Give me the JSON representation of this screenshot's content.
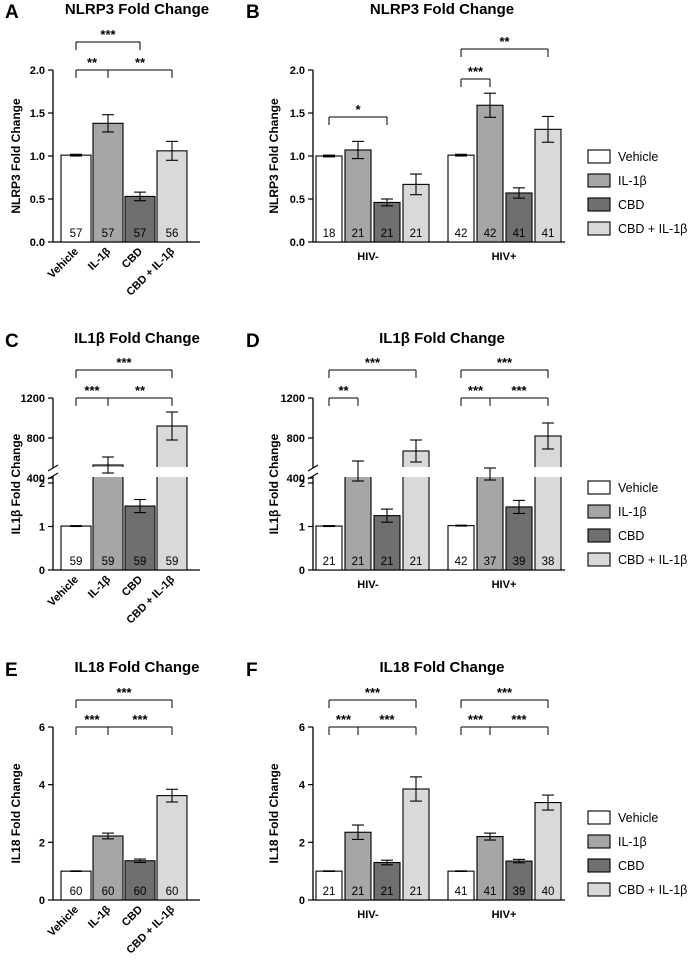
{
  "colors": {
    "vehicle": "#ffffff",
    "il1b": "#a6a6a6",
    "cbd": "#6f6f6f",
    "cbd_il1b": "#d9d9d9",
    "stroke": "#000000"
  },
  "legend": {
    "position": "right",
    "items": [
      "Vehicle",
      "IL-1β",
      "CBD",
      "CBD + IL-1β"
    ]
  },
  "chart_data": [
    {
      "panel": "A",
      "type": "bar",
      "title": "NLRP3 Fold Change",
      "ylabel": "NLRP3 Fold Change",
      "categories": [
        "Vehicle",
        "IL-1β",
        "CBD",
        "CBD + IL-1β"
      ],
      "values": [
        1.01,
        1.38,
        0.53,
        1.06
      ],
      "errors": [
        0.01,
        0.1,
        0.05,
        0.11
      ],
      "n": [
        "57",
        "57",
        "57",
        "56"
      ],
      "ylim": [
        0,
        2.0
      ],
      "yticks": [
        "0.0",
        "0.5",
        "1.0",
        "1.5",
        "2.0"
      ],
      "significance": [
        {
          "from": 0,
          "to": 1,
          "label": "**"
        },
        {
          "from": 1,
          "to": 3,
          "label": "**"
        },
        {
          "from": 0,
          "to": 2,
          "label": "***"
        }
      ]
    },
    {
      "panel": "B",
      "type": "bar",
      "title": "NLRP3 Fold Change",
      "ylabel": "NLRP3 Fold Change",
      "groups": [
        "HIV-",
        "HIV+"
      ],
      "series": [
        {
          "name": "Vehicle",
          "values": [
            1.0,
            1.01
          ],
          "errors": [
            0.01,
            0.01
          ],
          "n": [
            "18",
            "42"
          ]
        },
        {
          "name": "IL-1β",
          "values": [
            1.07,
            1.59
          ],
          "errors": [
            0.1,
            0.14
          ],
          "n": [
            "21",
            "42"
          ]
        },
        {
          "name": "CBD",
          "values": [
            0.46,
            0.57
          ],
          "errors": [
            0.04,
            0.06
          ],
          "n": [
            "21",
            "41"
          ]
        },
        {
          "name": "CBD + IL-1β",
          "values": [
            0.67,
            1.31
          ],
          "errors": [
            0.12,
            0.15
          ],
          "n": [
            "21",
            "41"
          ]
        }
      ],
      "ylim": [
        0,
        2.0
      ],
      "yticks": [
        "0.0",
        "0.5",
        "1.0",
        "1.5",
        "2.0"
      ],
      "significance": [
        {
          "group": 0,
          "from": 0,
          "to": 2,
          "label": "*"
        },
        {
          "group": 1,
          "from": 0,
          "to": 1,
          "label": "***"
        },
        {
          "group": 1,
          "from": 0,
          "to": 3,
          "label": "**"
        }
      ]
    },
    {
      "panel": "C",
      "type": "bar",
      "title": "IL1β Fold Change",
      "ylabel": "IL1β Fold Change",
      "categories": [
        "Vehicle",
        "IL-1β",
        "CBD",
        "CBD + IL-1β"
      ],
      "values": [
        1.01,
        530,
        1.47,
        920
      ],
      "errors": [
        0.01,
        80,
        0.15,
        140
      ],
      "n": [
        "59",
        "59",
        "59",
        "59"
      ],
      "axis_break": true,
      "ylim_lower": [
        0,
        2
      ],
      "ylim_upper": [
        0,
        1200
      ],
      "yticks_lower": [
        "0",
        "1",
        "2"
      ],
      "yticks_upper": [
        "400",
        "800",
        "1200"
      ],
      "significance": [
        {
          "from": 0,
          "to": 1,
          "label": "***"
        },
        {
          "from": 1,
          "to": 3,
          "label": "**"
        },
        {
          "from": 0,
          "to": 3,
          "label": "***"
        }
      ]
    },
    {
      "panel": "D",
      "type": "bar",
      "title": "IL1β Fold Change",
      "ylabel": "IL1β Fold Change",
      "groups": [
        "HIV-",
        "HIV+"
      ],
      "series": [
        {
          "name": "Vehicle",
          "values": [
            1.01,
            1.02
          ],
          "errors": [
            0.01,
            0.01
          ],
          "n": [
            "21",
            "42"
          ]
        },
        {
          "name": "IL-1β",
          "values": [
            470,
            440
          ],
          "errors": [
            100,
            60
          ],
          "n": [
            "21",
            "37"
          ]
        },
        {
          "name": "CBD",
          "values": [
            1.25,
            1.45
          ],
          "errors": [
            0.15,
            0.15
          ],
          "n": [
            "21",
            "39"
          ]
        },
        {
          "name": "CBD + IL-1β",
          "values": [
            670,
            820
          ],
          "errors": [
            110,
            130
          ],
          "n": [
            "21",
            "38"
          ]
        }
      ],
      "axis_break": true,
      "ylim_lower": [
        0,
        2
      ],
      "ylim_upper": [
        0,
        1200
      ],
      "yticks_lower": [
        "0",
        "1",
        "2"
      ],
      "yticks_upper": [
        "400",
        "800",
        "1200"
      ],
      "significance": [
        {
          "group": 0,
          "from": 0,
          "to": 1,
          "label": "**"
        },
        {
          "group": 0,
          "from": 0,
          "to": 3,
          "label": "***"
        },
        {
          "group": 1,
          "from": 0,
          "to": 1,
          "label": "***"
        },
        {
          "group": 1,
          "from": 1,
          "to": 3,
          "label": "***"
        },
        {
          "group": 1,
          "from": 0,
          "to": 3,
          "label": "***"
        }
      ]
    },
    {
      "panel": "E",
      "type": "bar",
      "title": "IL18 Fold Change",
      "ylabel": "IL18 Fold Change",
      "categories": [
        "Vehicle",
        "IL-1β",
        "CBD",
        "CBD + IL-1β"
      ],
      "values": [
        1.0,
        2.22,
        1.36,
        3.62
      ],
      "errors": [
        0.01,
        0.1,
        0.06,
        0.22
      ],
      "n": [
        "60",
        "60",
        "60",
        "60"
      ],
      "ylim": [
        0,
        6
      ],
      "yticks": [
        "0",
        "2",
        "4",
        "6"
      ],
      "significance": [
        {
          "from": 0,
          "to": 1,
          "label": "***"
        },
        {
          "from": 1,
          "to": 3,
          "label": "***"
        },
        {
          "from": 0,
          "to": 3,
          "label": "***"
        }
      ]
    },
    {
      "panel": "F",
      "type": "bar",
      "title": "IL18 Fold Change",
      "ylabel": "IL18 Fold Change",
      "groups": [
        "HIV-",
        "HIV+"
      ],
      "series": [
        {
          "name": "Vehicle",
          "values": [
            1.0,
            1.0
          ],
          "errors": [
            0.01,
            0.01
          ],
          "n": [
            "21",
            "41"
          ]
        },
        {
          "name": "IL-1β",
          "values": [
            2.35,
            2.2
          ],
          "errors": [
            0.25,
            0.12
          ],
          "n": [
            "21",
            "41"
          ]
        },
        {
          "name": "CBD",
          "values": [
            1.3,
            1.35
          ],
          "errors": [
            0.08,
            0.06
          ],
          "n": [
            "21",
            "39"
          ]
        },
        {
          "name": "CBD + IL-1β",
          "values": [
            3.85,
            3.38
          ],
          "errors": [
            0.42,
            0.26
          ],
          "n": [
            "21",
            "40"
          ]
        }
      ],
      "ylim": [
        0,
        6
      ],
      "yticks": [
        "0",
        "2",
        "4",
        "6"
      ],
      "significance": [
        {
          "group": 0,
          "from": 0,
          "to": 1,
          "label": "***"
        },
        {
          "group": 0,
          "from": 1,
          "to": 3,
          "label": "***"
        },
        {
          "group": 0,
          "from": 0,
          "to": 3,
          "label": "***"
        },
        {
          "group": 1,
          "from": 0,
          "to": 1,
          "label": "***"
        },
        {
          "group": 1,
          "from": 1,
          "to": 3,
          "label": "***"
        },
        {
          "group": 1,
          "from": 0,
          "to": 3,
          "label": "***"
        }
      ]
    }
  ]
}
